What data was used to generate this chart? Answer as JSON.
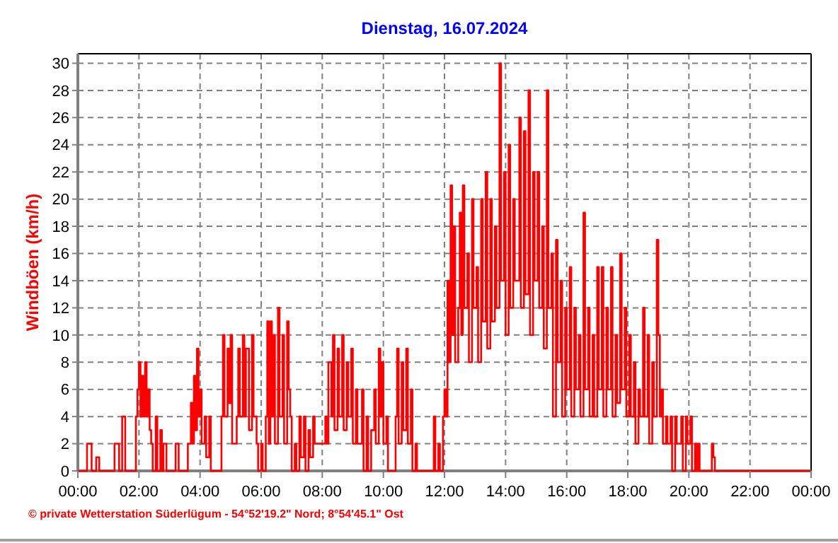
{
  "chart_data": {
    "type": "step",
    "title": "Dienstag, 16.07.2024",
    "ylabel": "Windböen  (km/h)",
    "annotations": [
      "© private Wetterstation Süderlügum  -  54°52'19.2\" Nord; 8°54'45.1\" Ost"
    ],
    "xlim": [
      0,
      24
    ],
    "ylim": [
      0,
      30.7
    ],
    "xticks": [
      {
        "value": 0,
        "label": "00:00"
      },
      {
        "value": 2,
        "label": "02:00"
      },
      {
        "value": 4,
        "label": "04:00"
      },
      {
        "value": 6,
        "label": "06:00"
      },
      {
        "value": 8,
        "label": "08:00"
      },
      {
        "value": 10,
        "label": "10:00"
      },
      {
        "value": 12,
        "label": "12:00"
      },
      {
        "value": 14,
        "label": "14:00"
      },
      {
        "value": 16,
        "label": "16:00"
      },
      {
        "value": 18,
        "label": "18:00"
      },
      {
        "value": 20,
        "label": "20:00"
      },
      {
        "value": 22,
        "label": "22:00"
      },
      {
        "value": 24,
        "label": "00:00"
      }
    ],
    "yticks": [
      0,
      2,
      4,
      6,
      8,
      10,
      12,
      14,
      16,
      18,
      20,
      22,
      24,
      26,
      28,
      30
    ],
    "grid": true,
    "marker": "none",
    "line_style": "solid",
    "series": [
      {
        "color": "#ff0000",
        "x": [
          0,
          0.3,
          0.45,
          0.6,
          0.7,
          1.2,
          1.35,
          1.45,
          1.55,
          1.9,
          1.95,
          2.0,
          2.05,
          2.1,
          2.15,
          2.2,
          2.25,
          2.3,
          2.35,
          2.4,
          2.45,
          2.55,
          2.6,
          2.7,
          2.75,
          2.8,
          2.9,
          3.2,
          3.3,
          3.6,
          3.7,
          3.75,
          3.8,
          3.85,
          3.9,
          3.95,
          4.0,
          4.05,
          4.15,
          4.2,
          4.3,
          4.35,
          4.7,
          4.75,
          4.8,
          4.9,
          4.95,
          5.0,
          5.05,
          5.2,
          5.25,
          5.3,
          5.4,
          5.45,
          5.5,
          5.6,
          5.7,
          5.75,
          5.85,
          5.9,
          6.0,
          6.05,
          6.15,
          6.2,
          6.25,
          6.3,
          6.35,
          6.4,
          6.45,
          6.55,
          6.6,
          6.7,
          6.75,
          6.85,
          6.9,
          6.95,
          7.0,
          7.1,
          7.15,
          7.25,
          7.3,
          7.4,
          7.45,
          7.55,
          7.6,
          7.7,
          7.75,
          8.1,
          8.15,
          8.2,
          8.3,
          8.35,
          8.4,
          8.5,
          8.55,
          8.65,
          8.7,
          8.8,
          8.85,
          8.95,
          9.0,
          9.1,
          9.15,
          9.3,
          9.35,
          9.45,
          9.5,
          9.6,
          9.7,
          9.75,
          9.85,
          9.9,
          9.95,
          10.0,
          10.1,
          10.15,
          10.4,
          10.45,
          10.5,
          10.6,
          10.65,
          10.75,
          10.8,
          10.9,
          10.95,
          11.05,
          11.1,
          11.65,
          11.7,
          11.8,
          11.85,
          11.95,
          12.0,
          12.05,
          12.1,
          12.15,
          12.2,
          12.25,
          12.3,
          12.35,
          12.45,
          12.5,
          12.55,
          12.6,
          12.65,
          12.75,
          12.8,
          12.9,
          12.95,
          13.05,
          13.1,
          13.2,
          13.25,
          13.35,
          13.4,
          13.5,
          13.55,
          13.65,
          13.7,
          13.8,
          13.85,
          13.95,
          14.0,
          14.1,
          14.15,
          14.25,
          14.3,
          14.45,
          14.5,
          14.6,
          14.65,
          14.75,
          14.8,
          14.9,
          14.95,
          15.05,
          15.1,
          15.2,
          15.25,
          15.35,
          15.4,
          15.5,
          15.55,
          15.65,
          15.7,
          15.8,
          15.85,
          15.95,
          16.0,
          16.1,
          16.15,
          16.25,
          16.3,
          16.4,
          16.45,
          16.55,
          16.6,
          16.7,
          16.75,
          16.85,
          16.9,
          17.0,
          17.05,
          17.15,
          17.2,
          17.3,
          17.35,
          17.45,
          17.5,
          17.6,
          17.65,
          17.75,
          17.8,
          17.9,
          17.95,
          18.05,
          18.1,
          18.2,
          18.25,
          18.35,
          18.4,
          18.5,
          18.55,
          18.65,
          18.7,
          18.8,
          18.85,
          18.95,
          19.0,
          19.05,
          19.1,
          19.15,
          19.25,
          19.3,
          19.4,
          19.45,
          19.55,
          19.6,
          19.75,
          19.8,
          19.9,
          19.95,
          20.05,
          20.1,
          20.2,
          20.25,
          20.3,
          20.35,
          20.75,
          20.8,
          20.85,
          24
        ],
        "values": [
          0,
          2,
          0,
          1,
          0,
          2,
          0,
          4,
          0,
          4,
          6,
          8,
          4,
          7,
          4,
          8,
          4,
          6,
          3,
          2,
          0,
          4,
          0,
          3,
          0,
          2,
          0,
          2,
          0,
          2,
          5,
          2,
          7,
          3,
          9,
          4,
          6,
          2,
          4,
          1,
          4,
          0,
          4,
          10,
          4,
          9,
          5,
          10,
          2,
          4,
          9,
          4,
          10,
          4,
          9,
          3,
          10,
          4,
          2,
          0,
          2,
          0,
          4,
          11,
          2,
          11,
          4,
          10,
          2,
          12,
          4,
          10,
          2,
          11,
          6,
          4,
          0,
          2,
          0,
          4,
          1,
          4,
          0,
          3,
          1,
          4,
          2,
          4,
          2,
          8,
          4,
          10,
          3,
          9,
          4,
          10,
          3,
          8,
          4,
          9,
          2,
          6,
          2,
          6,
          0,
          4,
          0,
          3,
          6,
          2,
          9,
          4,
          8,
          2,
          4,
          0,
          4,
          9,
          2,
          8,
          3,
          9,
          2,
          6,
          0,
          2,
          0,
          4,
          0,
          2,
          0,
          4,
          6,
          4,
          14,
          8,
          21,
          10,
          18,
          8,
          12,
          19,
          10,
          21,
          12,
          16,
          8,
          20,
          12,
          15,
          8,
          20,
          11,
          22,
          9,
          20,
          11,
          18,
          12,
          30,
          14,
          22,
          10,
          24,
          12,
          20,
          14,
          26,
          12,
          25,
          13,
          28,
          10,
          22,
          14,
          22,
          12,
          18,
          9,
          28,
          12,
          16,
          4,
          17,
          8,
          14,
          4,
          12,
          6,
          15,
          4,
          12,
          6,
          10,
          4,
          19,
          6,
          12,
          4,
          10,
          4,
          15,
          6,
          15,
          4,
          12,
          6,
          15,
          4,
          10,
          5,
          16,
          6,
          12,
          4,
          10,
          4,
          8,
          2,
          6,
          4,
          12,
          4,
          10,
          2,
          8,
          4,
          17,
          10,
          4,
          6,
          2,
          4,
          2,
          4,
          0,
          4,
          2,
          4,
          0,
          4,
          2,
          4,
          0,
          2,
          0,
          2,
          0,
          2,
          1,
          0,
          0
        ]
      }
    ]
  }
}
